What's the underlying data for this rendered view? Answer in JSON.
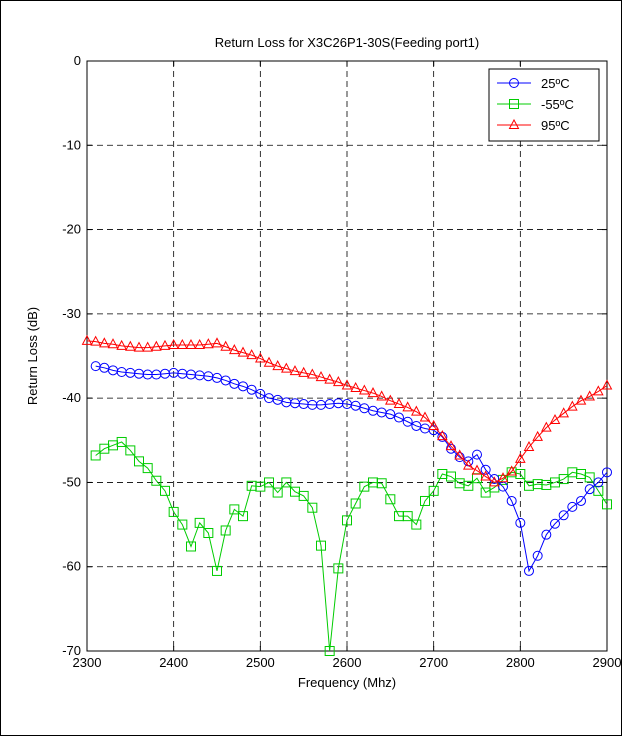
{
  "chart_data": {
    "type": "line",
    "title": "Return Loss for X3C26P1-30S(Feeding port1)",
    "xlabel": "Frequency (Mhz)",
    "ylabel": "Return Loss (dB)",
    "xlim": [
      2300,
      2900
    ],
    "ylim": [
      -70,
      0
    ],
    "xticks": [
      2300,
      2400,
      2500,
      2600,
      2700,
      2800,
      2900
    ],
    "yticks": [
      0,
      -10,
      -20,
      -30,
      -40,
      -50,
      -60,
      -70
    ],
    "grid": true,
    "legend_position": "top-right",
    "series": [
      {
        "name": "25ºC",
        "color": "#0000ff",
        "marker": "circle",
        "x": [
          2310,
          2320,
          2330,
          2340,
          2350,
          2360,
          2370,
          2380,
          2390,
          2400,
          2410,
          2420,
          2430,
          2440,
          2450,
          2460,
          2470,
          2480,
          2490,
          2500,
          2510,
          2520,
          2530,
          2540,
          2550,
          2560,
          2570,
          2580,
          2590,
          2600,
          2610,
          2620,
          2630,
          2640,
          2650,
          2660,
          2670,
          2680,
          2690,
          2700,
          2710,
          2720,
          2730,
          2740,
          2750,
          2760,
          2770,
          2780,
          2790,
          2800,
          2810,
          2820,
          2830,
          2840,
          2850,
          2860,
          2870,
          2880,
          2890,
          2900
        ],
        "values": [
          -36.2,
          -36.4,
          -36.7,
          -36.9,
          -37.0,
          -37.1,
          -37.2,
          -37.2,
          -37.1,
          -37.0,
          -37.1,
          -37.2,
          -37.3,
          -37.4,
          -37.6,
          -37.9,
          -38.3,
          -38.6,
          -39.0,
          -39.5,
          -40.0,
          -40.2,
          -40.5,
          -40.6,
          -40.7,
          -40.8,
          -40.8,
          -40.7,
          -40.6,
          -40.7,
          -40.9,
          -41.2,
          -41.5,
          -41.7,
          -41.9,
          -42.3,
          -42.8,
          -43.3,
          -43.6,
          -43.8,
          -44.6,
          -46.0,
          -47.0,
          -47.5,
          -46.7,
          -48.5,
          -49.6,
          -50.5,
          -52.2,
          -54.8,
          -60.5,
          -58.7,
          -56.2,
          -54.9,
          -53.9,
          -52.9,
          -52.2,
          -50.8,
          -50.0,
          -48.8
        ]
      },
      {
        "name": "-55ºC",
        "color": "#00cc00",
        "marker": "square",
        "x": [
          2310,
          2320,
          2330,
          2340,
          2350,
          2360,
          2370,
          2380,
          2390,
          2400,
          2410,
          2420,
          2430,
          2440,
          2450,
          2460,
          2470,
          2480,
          2490,
          2500,
          2510,
          2520,
          2530,
          2540,
          2550,
          2560,
          2570,
          2580,
          2590,
          2600,
          2610,
          2620,
          2630,
          2640,
          2650,
          2660,
          2670,
          2680,
          2690,
          2700,
          2710,
          2720,
          2730,
          2740,
          2750,
          2760,
          2770,
          2780,
          2790,
          2800,
          2810,
          2820,
          2830,
          2840,
          2850,
          2860,
          2870,
          2880,
          2890,
          2900
        ],
        "values": [
          -46.8,
          -46.0,
          -45.6,
          -45.2,
          -46.2,
          -47.5,
          -48.3,
          -49.8,
          -51.0,
          -53.5,
          -55.0,
          -57.6,
          -54.8,
          -56.0,
          -60.5,
          -55.7,
          -53.2,
          -54.0,
          -50.4,
          -50.5,
          -50.0,
          -51.2,
          -50.0,
          -51.1,
          -51.6,
          -53.0,
          -57.5,
          -70.0,
          -60.2,
          -54.5,
          -52.5,
          -50.5,
          -50.0,
          -50.1,
          -52.0,
          -54.0,
          -54.0,
          -55.0,
          -52.2,
          -51.0,
          -49.0,
          -49.3,
          -50.1,
          -50.4,
          -49.5,
          -51.2,
          -50.6,
          -49.7,
          -48.8,
          -49.0,
          -50.4,
          -50.2,
          -50.3,
          -50.0,
          -49.6,
          -48.8,
          -49.0,
          -49.4,
          -51.0,
          -52.6
        ]
      },
      {
        "name": "95ºC",
        "color": "#ff0000",
        "marker": "triangle",
        "x": [
          2300,
          2310,
          2320,
          2330,
          2340,
          2350,
          2360,
          2370,
          2380,
          2390,
          2400,
          2410,
          2420,
          2430,
          2440,
          2450,
          2460,
          2470,
          2480,
          2490,
          2500,
          2510,
          2520,
          2530,
          2540,
          2550,
          2560,
          2570,
          2580,
          2590,
          2600,
          2610,
          2620,
          2630,
          2640,
          2650,
          2660,
          2670,
          2680,
          2690,
          2700,
          2710,
          2720,
          2730,
          2740,
          2750,
          2760,
          2770,
          2780,
          2790,
          2800,
          2810,
          2820,
          2830,
          2840,
          2850,
          2860,
          2870,
          2880,
          2890,
          2900
        ],
        "values": [
          -33.2,
          -33.3,
          -33.5,
          -33.6,
          -33.8,
          -33.9,
          -34.0,
          -34.0,
          -33.9,
          -33.8,
          -33.7,
          -33.7,
          -33.7,
          -33.7,
          -33.6,
          -33.5,
          -33.9,
          -34.3,
          -34.6,
          -34.9,
          -35.3,
          -35.8,
          -36.2,
          -36.5,
          -36.8,
          -37.0,
          -37.2,
          -37.5,
          -37.8,
          -38.1,
          -38.5,
          -38.8,
          -39.1,
          -39.4,
          -39.8,
          -40.3,
          -40.7,
          -41.1,
          -41.6,
          -42.3,
          -43.3,
          -44.5,
          -45.7,
          -46.8,
          -48.0,
          -48.6,
          -49.3,
          -50.0,
          -49.5,
          -48.7,
          -47.2,
          -45.8,
          -44.6,
          -43.5,
          -42.6,
          -41.8,
          -41.0,
          -40.3,
          -39.8,
          -39.2,
          -38.5
        ]
      }
    ]
  }
}
